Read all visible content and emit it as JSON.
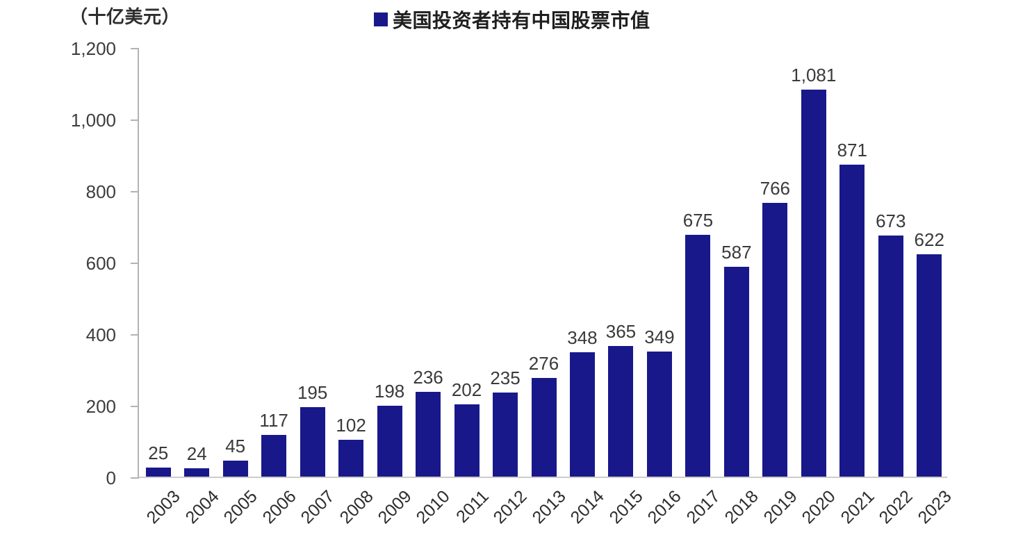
{
  "unit_label": "（十亿美元）",
  "legend": {
    "label": "美国投资者持有中国股票市值",
    "swatch_color": "#18188B"
  },
  "chart_data": {
    "type": "bar",
    "title": "美国投资者持有中国股票市值",
    "unit_label": "（十亿美元）",
    "legend_position": "top",
    "categories": [
      "2003",
      "2004",
      "2005",
      "2006",
      "2007",
      "2008",
      "2009",
      "2010",
      "2011",
      "2012",
      "2013",
      "2014",
      "2015",
      "2016",
      "2017",
      "2018",
      "2019",
      "2020",
      "2021",
      "2022",
      "2023"
    ],
    "values": [
      25,
      24,
      45,
      117,
      195,
      102,
      198,
      236,
      202,
      235,
      276,
      348,
      365,
      349,
      675,
      587,
      766,
      1081,
      871,
      673,
      622
    ],
    "value_labels": [
      "25",
      "24",
      "45",
      "117",
      "195",
      "102",
      "198",
      "236",
      "202",
      "235",
      "276",
      "348",
      "365",
      "349",
      "675",
      "587",
      "766",
      "1,081",
      "871",
      "673",
      "622"
    ],
    "xlabel": "",
    "ylabel": "（十亿美元）",
    "ylim": [
      0,
      1200
    ],
    "y_ticks": [
      0,
      200,
      400,
      600,
      800,
      1000,
      1200
    ],
    "y_tick_labels": [
      "0",
      "200",
      "400",
      "600",
      "800",
      "1,000",
      "1,200"
    ],
    "grid": false,
    "bar_color": "#18188B",
    "axis_color": "#b3b3b3",
    "value_label_color": "#3a3a3a",
    "tick_label_color": "#3d3d3d"
  }
}
